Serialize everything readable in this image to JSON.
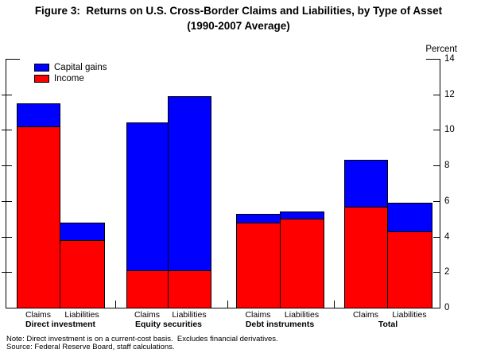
{
  "figure": {
    "title": "Figure 3:  Returns on U.S. Cross-Border Claims and Liabilities, by Type of Asset",
    "subtitle": "(1990-2007 Average)"
  },
  "chart_data": {
    "type": "bar",
    "stacked": true,
    "unit_label": "Percent",
    "ylabel": "Percent",
    "xlabel": "",
    "ylim": [
      0,
      14
    ],
    "yticks": [
      0,
      2,
      4,
      6,
      8,
      10,
      12,
      14
    ],
    "grid": false,
    "legend_position": "top-left",
    "legend": [
      {
        "name": "Capital gains",
        "color": "#0000FF"
      },
      {
        "name": "Income",
        "color": "#FF0000"
      }
    ],
    "colors": {
      "capital_gains": "#0000FF",
      "income": "#FF0000",
      "axis": "#000000"
    },
    "groups": [
      {
        "label": "Direct investment",
        "bars": [
          {
            "label": "Claims",
            "income": 10.2,
            "capital_gains": 1.3,
            "total": 11.5
          },
          {
            "label": "Liabilities",
            "income": 3.8,
            "capital_gains": 1.0,
            "total": 4.8
          }
        ]
      },
      {
        "label": "Equity securities",
        "bars": [
          {
            "label": "Claims",
            "income": 2.1,
            "capital_gains": 8.3,
            "total": 10.4
          },
          {
            "label": "Liabilities",
            "income": 2.1,
            "capital_gains": 9.8,
            "total": 11.9
          }
        ]
      },
      {
        "label": "Debt instruments",
        "bars": [
          {
            "label": "Claims",
            "income": 4.8,
            "capital_gains": 0.5,
            "total": 5.3
          },
          {
            "label": "Liabilities",
            "income": 5.0,
            "capital_gains": 0.4,
            "total": 5.4
          }
        ]
      },
      {
        "label": "Total",
        "bars": [
          {
            "label": "Claims",
            "income": 5.7,
            "capital_gains": 2.6,
            "total": 8.3
          },
          {
            "label": "Liabilities",
            "income": 4.3,
            "capital_gains": 1.6,
            "total": 5.9
          }
        ]
      }
    ]
  },
  "notes": {
    "note": "Note: Direct investment is on a current-cost basis.  Excludes financial derivatives.",
    "source": "Source: Federal Reserve Board, staff calculations."
  }
}
